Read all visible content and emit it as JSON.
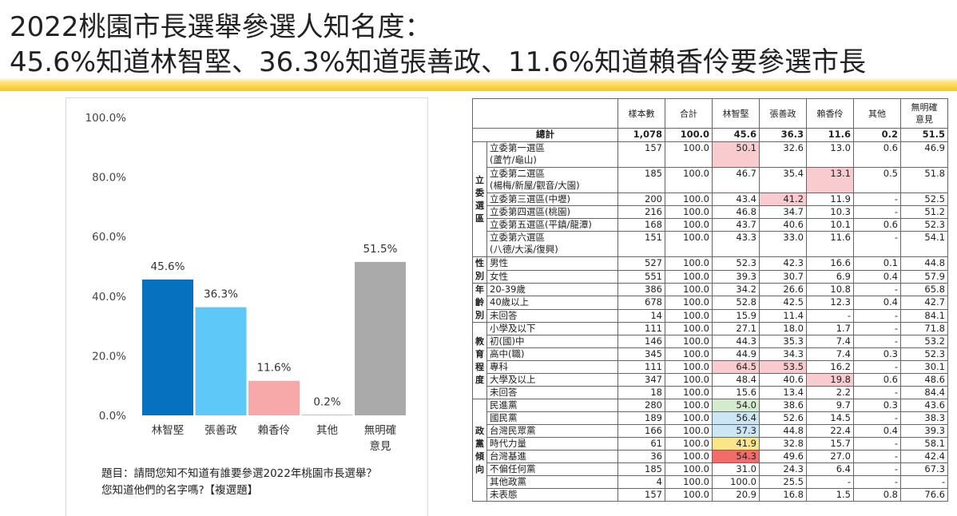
{
  "title": {
    "line1": "2022桃園市長選舉參選人知名度：",
    "line2": "45.6%知道林智堅、36.3%知道張善政、11.6%知道賴香伶要參選市長"
  },
  "colors": {
    "bar1": "#0672bf",
    "bar2": "#5ec8f8",
    "bar3": "#f7a8a8",
    "bar4": "#aaaaaa",
    "bar5": "#aaaaaa",
    "accent": "#f7c51e"
  },
  "chart_data": {
    "type": "bar",
    "categories": [
      "林智堅",
      "張善政",
      "賴香伶",
      "其他",
      "無明確意見"
    ],
    "category_lines": [
      [
        "林智堅"
      ],
      [
        "張善政"
      ],
      [
        "賴香伶"
      ],
      [
        "其他"
      ],
      [
        "無明確",
        "意見"
      ]
    ],
    "values": [
      45.6,
      36.3,
      11.6,
      0.2,
      51.5
    ],
    "data_labels": [
      "45.6%",
      "36.3%",
      "11.6%",
      "0.2%",
      "51.5%"
    ],
    "ylim": [
      0,
      100
    ],
    "yticks": [
      0,
      20,
      40,
      60,
      80,
      100
    ],
    "ytick_labels": [
      "0.0%",
      "20.0%",
      "40.0%",
      "60.0%",
      "80.0%",
      "100.0%"
    ],
    "grid": false,
    "legend": "none"
  },
  "chart_note": {
    "line1": "題目：請問您知不知道有誰要參選2022年桃園市長選舉？",
    "line2": "您知道他們的名字嗎?【複選題】"
  },
  "table": {
    "headers": [
      "樣本數",
      "合計",
      "林智堅",
      "張善政",
      "賴香伶",
      "其他",
      "無明確意見"
    ],
    "header_lines": [
      [
        "樣本數"
      ],
      [
        "合計"
      ],
      [
        "林智堅"
      ],
      [
        "張善政"
      ],
      [
        "賴香伶"
      ],
      [
        "其他"
      ],
      [
        "無明確",
        "意見"
      ]
    ],
    "total": {
      "label": "總計",
      "values": [
        "1,078",
        "100.0",
        "45.6",
        "36.3",
        "11.6",
        "0.2",
        "51.5"
      ]
    },
    "groups": [
      {
        "name": "立委選區",
        "rows": [
          {
            "label": [
              "立委第一選區",
              "(蘆竹/龜山)"
            ],
            "values": [
              "157",
              "100.0",
              "50.1",
              "32.6",
              "13.0",
              "0.6",
              "46.9"
            ],
            "hl": {
              "2": "pink"
            }
          },
          {
            "label": [
              "立委第二選區",
              "(楊梅/新屋/觀音/大園)"
            ],
            "values": [
              "185",
              "100.0",
              "46.7",
              "35.4",
              "13.1",
              "0.5",
              "51.8"
            ],
            "hl": {
              "4": "pink"
            }
          },
          {
            "label": [
              "立委第三選區(中壢)"
            ],
            "values": [
              "200",
              "100.0",
              "43.4",
              "41.2",
              "11.9",
              "-",
              "52.5"
            ],
            "hl": {
              "3": "pink"
            }
          },
          {
            "label": [
              "立委第四選區(桃園)"
            ],
            "values": [
              "216",
              "100.0",
              "46.8",
              "34.7",
              "10.3",
              "-",
              "51.2"
            ]
          },
          {
            "label": [
              "立委第五選區(平鎮/龍潭)"
            ],
            "values": [
              "168",
              "100.0",
              "43.7",
              "40.6",
              "10.1",
              "0.6",
              "52.3"
            ]
          },
          {
            "label": [
              "立委第六選區",
              "(八德/大溪/復興)"
            ],
            "values": [
              "151",
              "100.0",
              "43.3",
              "33.0",
              "11.6",
              "-",
              "54.1"
            ]
          }
        ]
      },
      {
        "name": "性別",
        "rows": [
          {
            "label": [
              "男性"
            ],
            "values": [
              "527",
              "100.0",
              "52.3",
              "42.3",
              "16.6",
              "0.1",
              "44.8"
            ]
          },
          {
            "label": [
              "女性"
            ],
            "values": [
              "551",
              "100.0",
              "39.3",
              "30.7",
              "6.9",
              "0.4",
              "57.9"
            ]
          }
        ]
      },
      {
        "name": "年齡別",
        "rows": [
          {
            "label": [
              "20-39歲"
            ],
            "values": [
              "386",
              "100.0",
              "34.2",
              "26.6",
              "10.8",
              "-",
              "65.8"
            ]
          },
          {
            "label": [
              "40歲以上"
            ],
            "values": [
              "678",
              "100.0",
              "52.8",
              "42.5",
              "12.3",
              "0.4",
              "42.7"
            ]
          },
          {
            "label": [
              "未回答"
            ],
            "values": [
              "14",
              "100.0",
              "15.9",
              "11.4",
              "-",
              "-",
              "84.1"
            ]
          }
        ]
      },
      {
        "name": "教育程度",
        "rows": [
          {
            "label": [
              "小學及以下"
            ],
            "values": [
              "111",
              "100.0",
              "27.1",
              "18.0",
              "1.7",
              "-",
              "71.8"
            ]
          },
          {
            "label": [
              "初(國)中"
            ],
            "values": [
              "146",
              "100.0",
              "44.3",
              "35.3",
              "7.4",
              "-",
              "53.2"
            ]
          },
          {
            "label": [
              "高中(職)"
            ],
            "values": [
              "345",
              "100.0",
              "44.9",
              "34.3",
              "7.4",
              "0.3",
              "52.3"
            ]
          },
          {
            "label": [
              "專科"
            ],
            "values": [
              "111",
              "100.0",
              "64.5",
              "53.5",
              "16.2",
              "-",
              "30.1"
            ],
            "hl": {
              "2": "pink",
              "3": "pink"
            }
          },
          {
            "label": [
              "大學及以上"
            ],
            "values": [
              "347",
              "100.0",
              "48.4",
              "40.6",
              "19.8",
              "0.6",
              "48.6"
            ],
            "hl": {
              "4": "pink"
            }
          },
          {
            "label": [
              "未回答"
            ],
            "values": [
              "18",
              "100.0",
              "15.6",
              "13.4",
              "2.2",
              "-",
              "84.4"
            ]
          }
        ]
      },
      {
        "name": "政黨傾向",
        "rows": [
          {
            "label": [
              "民進黨"
            ],
            "values": [
              "280",
              "100.0",
              "54.0",
              "38.6",
              "9.7",
              "0.3",
              "43.6"
            ],
            "hl": {
              "2": "green"
            }
          },
          {
            "label": [
              "國民黨"
            ],
            "values": [
              "189",
              "100.0",
              "56.4",
              "52.6",
              "14.5",
              "-",
              "38.3"
            ],
            "hl": {
              "2": "blue"
            }
          },
          {
            "label": [
              "台灣民眾黨"
            ],
            "values": [
              "166",
              "100.0",
              "57.3",
              "44.8",
              "22.4",
              "0.4",
              "39.3"
            ],
            "hl": {
              "2": "blue"
            }
          },
          {
            "label": [
              "時代力量"
            ],
            "values": [
              "61",
              "100.0",
              "41.9",
              "32.8",
              "15.7",
              "-",
              "58.1"
            ],
            "hl": {
              "2": "yellow"
            }
          },
          {
            "label": [
              "台灣基進"
            ],
            "values": [
              "36",
              "100.0",
              "54.3",
              "49.6",
              "27.0",
              "-",
              "42.4"
            ],
            "hl": {
              "2": "red"
            }
          },
          {
            "label": [
              "不偏任何黨"
            ],
            "values": [
              "185",
              "100.0",
              "31.0",
              "24.3",
              "6.4",
              "-",
              "67.3"
            ]
          },
          {
            "label": [
              "其他政黨"
            ],
            "values": [
              "4",
              "100.0",
              "100.0",
              "25.5",
              "-",
              "-",
              "-"
            ]
          },
          {
            "label": [
              "未表態"
            ],
            "values": [
              "157",
              "100.0",
              "20.9",
              "16.8",
              "1.5",
              "0.8",
              "76.6"
            ]
          }
        ]
      }
    ]
  }
}
